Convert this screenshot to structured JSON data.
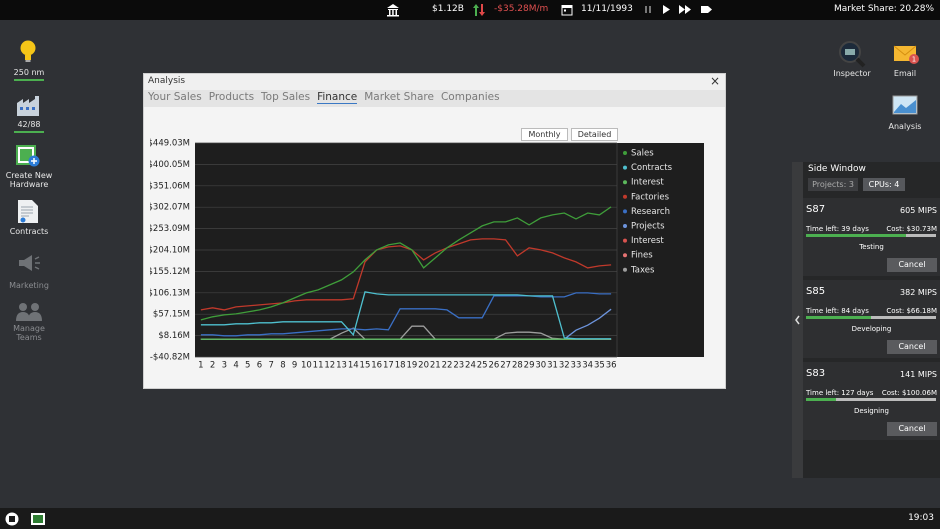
{
  "top_bar": {
    "money": "$1.12B",
    "cashflow": "-$35.28M/m",
    "date": "11/11/1993",
    "market_share": "Market Share: 20.28%"
  },
  "left_sidebar": [
    "250 nm",
    "42/88",
    "Create New Hardware",
    "Contracts",
    "Marketing",
    "Manage Teams"
  ],
  "right_icons": [
    "Inspector",
    "Email",
    "Analysis"
  ],
  "analysis_window": {
    "title": "Analysis",
    "close": "×",
    "tabs": [
      "Your Sales",
      "Products",
      "Top Sales",
      "Finance",
      "Market Share",
      "Companies"
    ],
    "buttons": [
      "Monthly",
      "Detailed"
    ]
  },
  "chart_data": {
    "type": "line",
    "categories": [
      "1",
      "2",
      "3",
      "4",
      "5",
      "6",
      "7",
      "8",
      "9",
      "10",
      "11",
      "12",
      "13",
      "14",
      "15",
      "16",
      "17",
      "18",
      "19",
      "20",
      "21",
      "22",
      "23",
      "24",
      "25",
      "26",
      "27",
      "28",
      "29",
      "30",
      "31",
      "32",
      "33",
      "34",
      "35",
      "36"
    ],
    "ylim": [
      -40.82,
      449.03
    ],
    "yticks": [
      {
        "value": -40.82,
        "label": "-$40.82M"
      },
      {
        "value": 8.16,
        "label": "$8.16M"
      },
      {
        "value": 57.15,
        "label": "$57.15M"
      },
      {
        "value": 106.13,
        "label": "$106.13M"
      },
      {
        "value": 155.12,
        "label": "$155.12M"
      },
      {
        "value": 204.1,
        "label": "$204.10M"
      },
      {
        "value": 253.09,
        "label": "$253.09M"
      },
      {
        "value": 302.07,
        "label": "$302.07M"
      },
      {
        "value": 351.06,
        "label": "$351.06M"
      },
      {
        "value": 400.05,
        "label": "$400.05M"
      },
      {
        "value": 449.03,
        "label": "$449.03M"
      }
    ],
    "grid": true,
    "series": [
      {
        "name": "Sales",
        "color": "#3f9e3a",
        "values": [
          44.2,
          51.1,
          55.6,
          57.9,
          62.5,
          67.1,
          73.9,
          83.1,
          94.5,
          105.9,
          112.8,
          124.2,
          135.7,
          154.0,
          181.4,
          204.3,
          215.7,
          220.3,
          204.3,
          163.2,
          186.0,
          209.2,
          227.2,
          243.2,
          259.2,
          268.4,
          268.4,
          277.5,
          261.5,
          277.5,
          284.4,
          288.9,
          275.2,
          288.9,
          284.4,
          302.7
        ]
      },
      {
        "name": "Contracts",
        "color": "#4fc0cf",
        "values": [
          32.8,
          32.8,
          32.8,
          35.2,
          35.2,
          37.4,
          37.4,
          39.7,
          39.7,
          39.7,
          39.7,
          39.7,
          39.7,
          10.0,
          108.3,
          103.7,
          101.4,
          101.4,
          101.4,
          101.4,
          101.4,
          101.4,
          101.4,
          101.4,
          101.4,
          101.4,
          101.4,
          101.4,
          99.1,
          99.1,
          99.1,
          3.0,
          0.8,
          0.8,
          0.8,
          0.8
        ]
      },
      {
        "name": "Interest",
        "color": "#5cb85c",
        "values": [
          0,
          0,
          0,
          0,
          0,
          0,
          0,
          0,
          0,
          0,
          0,
          0,
          0,
          0,
          0,
          0,
          0,
          0,
          0,
          0,
          0,
          0,
          0,
          0,
          0,
          0,
          0,
          0,
          0,
          0,
          0,
          0,
          0,
          0,
          0,
          0
        ]
      },
      {
        "name": "Factories",
        "color": "#c0392b",
        "values": [
          67.1,
          71.7,
          67.1,
          73.9,
          76.2,
          78.5,
          80.8,
          83.1,
          87.7,
          90.0,
          90.0,
          90.0,
          90.0,
          92.3,
          176.9,
          204.3,
          211.2,
          213.5,
          204.3,
          181.4,
          197.5,
          209.2,
          218.0,
          227.2,
          229.5,
          229.5,
          227.2,
          190.6,
          209.2,
          204.3,
          197.5,
          186.0,
          176.9,
          163.2,
          167.7,
          170.0
        ]
      },
      {
        "name": "Research",
        "color": "#3a6fc4",
        "values": [
          9.9,
          9.9,
          7.6,
          7.6,
          9.9,
          9.9,
          12.2,
          12.2,
          14.5,
          16.8,
          19.1,
          21.4,
          23.6,
          23.6,
          21.4,
          23.6,
          21.4,
          69.4,
          69.4,
          69.4,
          69.4,
          67.1,
          48.8,
          48.8,
          48.8,
          99.1,
          99.1,
          99.1,
          99.1,
          96.8,
          96.8,
          96.8,
          106.0,
          106.0,
          103.7,
          103.7
        ]
      },
      {
        "name": "Projects",
        "color": "#6d94dc",
        "values": [
          0,
          0,
          0,
          0,
          0,
          0,
          0,
          0,
          0,
          0,
          0,
          0,
          0,
          0,
          0,
          0,
          0,
          0,
          0,
          0,
          0,
          0,
          0,
          0,
          0,
          0,
          0,
          0,
          0,
          0,
          0,
          0,
          20.6,
          32.0,
          48.0,
          68.6
        ]
      },
      {
        "name": "Interest",
        "color": "#d9534f",
        "values": [
          0,
          0,
          0,
          0,
          0,
          0,
          0,
          0,
          0,
          0,
          0,
          0,
          0,
          0,
          0,
          0,
          0,
          0,
          0,
          0,
          0,
          0,
          0,
          0,
          0,
          0,
          0,
          0,
          0,
          0,
          0,
          0,
          0,
          0,
          0,
          0
        ]
      },
      {
        "name": "Fines",
        "color": "#e57373",
        "values": [
          0,
          0,
          0,
          0,
          0,
          0,
          0,
          0,
          0,
          0,
          0,
          0,
          0,
          0,
          0,
          0,
          0,
          0,
          0,
          0,
          0,
          0,
          0,
          0,
          0,
          0,
          0,
          0,
          0,
          0,
          0,
          0,
          0,
          0,
          0,
          0
        ]
      },
      {
        "name": "Taxes",
        "color": "#9e9e9e",
        "values": [
          0,
          0,
          0,
          0,
          0,
          0,
          0,
          0,
          0,
          0,
          0,
          0,
          13.7,
          25.2,
          0,
          0,
          0,
          0,
          29.7,
          29.7,
          0,
          0,
          0,
          0,
          0,
          0,
          13.7,
          16.0,
          16.0,
          13.7,
          2.0,
          0,
          0,
          0,
          0,
          0
        ]
      }
    ]
  },
  "side_window": {
    "title": "Side Window",
    "tabs": [
      "Projects: 3",
      "CPUs: 4"
    ],
    "cancel": "Cancel",
    "jobs": [
      {
        "name": "S87",
        "speed": "605 MIPS",
        "time_left": "Time left: 39 days",
        "cost": "Cost: $30.73M",
        "status": "Testing"
      },
      {
        "name": "S85",
        "speed": "382 MIPS",
        "time_left": "Time left: 84 days",
        "cost": "Cost: $66.18M",
        "status": "Developing"
      },
      {
        "name": "S83",
        "speed": "141 MIPS",
        "time_left": "Time left: 127 days",
        "cost": "Cost: $100.06M",
        "status": "Designing"
      }
    ]
  },
  "taskbar": {
    "clock": "19:03"
  }
}
